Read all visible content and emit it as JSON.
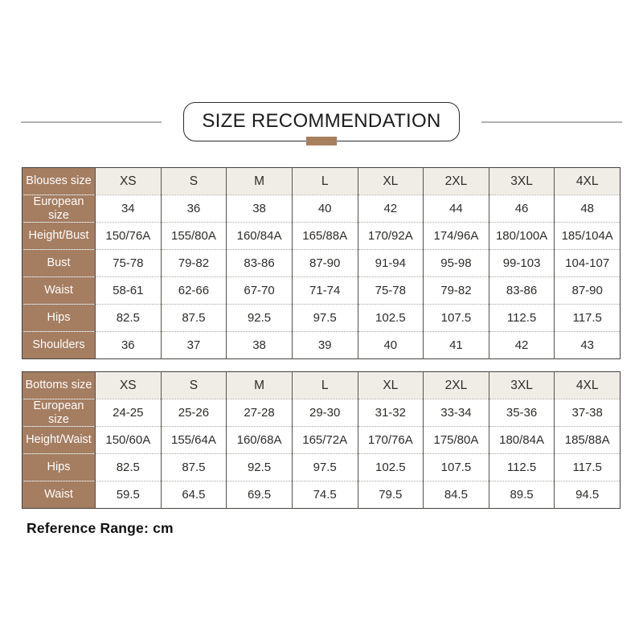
{
  "title": {
    "text": "SIZE RECOMMENDATION"
  },
  "footer": {
    "note": "Reference Range: cm"
  },
  "colors": {
    "label_brown": "#a57d61",
    "accent_brown": "#a87f5d",
    "header_row_bg": "#f0ede7",
    "solid_border": "#55534f",
    "dotted_border": "#a9a7a3",
    "divider_gray": "#b3b1ae",
    "text_dark": "#2e2c2a"
  },
  "tables": [
    {
      "header_label": "Blouses size",
      "columns": [
        "XS",
        "S",
        "M",
        "L",
        "XL",
        "2XL",
        "3XL",
        "4XL"
      ],
      "rows": [
        {
          "label": "European size",
          "values": [
            "34",
            "36",
            "38",
            "40",
            "42",
            "44",
            "46",
            "48"
          ]
        },
        {
          "label": "Height/Bust",
          "values": [
            "150/76A",
            "155/80A",
            "160/84A",
            "165/88A",
            "170/92A",
            "174/96A",
            "180/100A",
            "185/104A"
          ]
        },
        {
          "label": "Bust",
          "values": [
            "75-78",
            "79-82",
            "83-86",
            "87-90",
            "91-94",
            "95-98",
            "99-103",
            "104-107"
          ]
        },
        {
          "label": "Waist",
          "values": [
            "58-61",
            "62-66",
            "67-70",
            "71-74",
            "75-78",
            "79-82",
            "83-86",
            "87-90"
          ]
        },
        {
          "label": "Hips",
          "values": [
            "82.5",
            "87.5",
            "92.5",
            "97.5",
            "102.5",
            "107.5",
            "112.5",
            "117.5"
          ]
        },
        {
          "label": "Shoulders",
          "values": [
            "36",
            "37",
            "38",
            "39",
            "40",
            "41",
            "42",
            "43"
          ]
        }
      ]
    },
    {
      "header_label": "Bottoms size",
      "columns": [
        "XS",
        "S",
        "M",
        "L",
        "XL",
        "2XL",
        "3XL",
        "4XL"
      ],
      "rows": [
        {
          "label": "European size",
          "values": [
            "24-25",
            "25-26",
            "27-28",
            "29-30",
            "31-32",
            "33-34",
            "35-36",
            "37-38"
          ]
        },
        {
          "label": "Height/Waist",
          "values": [
            "150/60A",
            "155/64A",
            "160/68A",
            "165/72A",
            "170/76A",
            "175/80A",
            "180/84A",
            "185/88A"
          ]
        },
        {
          "label": "Hips",
          "values": [
            "82.5",
            "87.5",
            "92.5",
            "97.5",
            "102.5",
            "107.5",
            "112.5",
            "117.5"
          ]
        },
        {
          "label": "Waist",
          "values": [
            "59.5",
            "64.5",
            "69.5",
            "74.5",
            "79.5",
            "84.5",
            "89.5",
            "94.5"
          ]
        }
      ]
    }
  ]
}
